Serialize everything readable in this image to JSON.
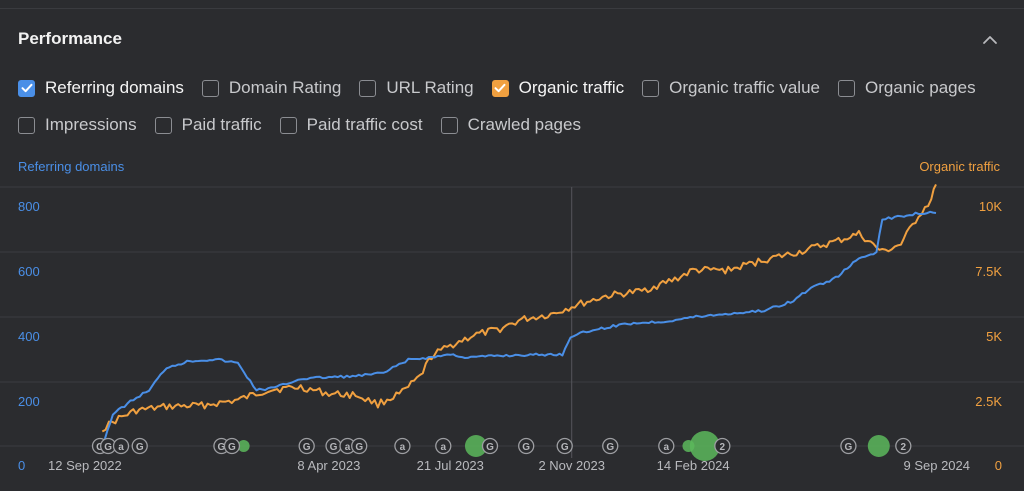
{
  "panel": {
    "title": "Performance"
  },
  "checkboxes": {
    "row1": [
      {
        "label": "Referring domains",
        "checked": true,
        "color": "#4a8fe7"
      },
      {
        "label": "Domain Rating",
        "checked": false
      },
      {
        "label": "URL Rating",
        "checked": false
      },
      {
        "label": "Organic traffic",
        "checked": true,
        "color": "#f0a040"
      },
      {
        "label": "Organic traffic value",
        "checked": false
      },
      {
        "label": "Organic pages",
        "checked": false
      }
    ],
    "row2": [
      {
        "label": "Impressions",
        "checked": false
      },
      {
        "label": "Paid traffic",
        "checked": false
      },
      {
        "label": "Paid traffic cost",
        "checked": false
      },
      {
        "label": "Crawled pages",
        "checked": false
      }
    ]
  },
  "chart_data": {
    "type": "line",
    "left_axis_title": "Referring domains",
    "right_axis_title": "Organic traffic",
    "left_ticks": [
      "0",
      "200",
      "400",
      "600",
      "800"
    ],
    "right_ticks": [
      "0",
      "2.5K",
      "5K",
      "7.5K",
      "10K"
    ],
    "ylim_left": [
      0,
      800
    ],
    "ylim_right": [
      0,
      10000
    ],
    "x_tick_labels": [
      "12 Sep 2022",
      "8 Apr 2023",
      "21 Jul 2023",
      "2 Nov 2023",
      "14 Feb 2024",
      "9 Sep 2024"
    ],
    "grid": true,
    "colors": {
      "referring_domains": "#4a8fe7",
      "organic_traffic": "#f0a040",
      "event_green": "#5cb85c"
    },
    "series": [
      {
        "name": "Referring domains",
        "axis": "left",
        "points": [
          [
            "2022-09-26",
            5
          ],
          [
            "2022-10-05",
            100
          ],
          [
            "2022-10-20",
            140
          ],
          [
            "2022-11-05",
            175
          ],
          [
            "2022-11-20",
            245
          ],
          [
            "2022-12-10",
            265
          ],
          [
            "2023-01-01",
            270
          ],
          [
            "2023-01-20",
            258
          ],
          [
            "2023-02-05",
            175
          ],
          [
            "2023-02-20",
            182
          ],
          [
            "2023-03-15",
            210
          ],
          [
            "2023-04-08",
            215
          ],
          [
            "2023-05-01",
            218
          ],
          [
            "2023-05-25",
            228
          ],
          [
            "2023-06-15",
            268
          ],
          [
            "2023-07-05",
            276
          ],
          [
            "2023-07-21",
            285
          ],
          [
            "2023-08-05",
            275
          ],
          [
            "2023-08-25",
            280
          ],
          [
            "2023-09-20",
            283
          ],
          [
            "2023-10-25",
            285
          ],
          [
            "2023-11-01",
            340
          ],
          [
            "2023-11-20",
            360
          ],
          [
            "2023-12-20",
            380
          ],
          [
            "2024-01-20",
            386
          ],
          [
            "2024-02-14",
            400
          ],
          [
            "2024-03-15",
            410
          ],
          [
            "2024-04-15",
            420
          ],
          [
            "2024-05-10",
            450
          ],
          [
            "2024-05-25",
            490
          ],
          [
            "2024-06-15",
            520
          ],
          [
            "2024-07-05",
            580
          ],
          [
            "2024-07-20",
            600
          ],
          [
            "2024-07-25",
            700
          ],
          [
            "2024-08-10",
            710
          ],
          [
            "2024-08-25",
            720
          ],
          [
            "2024-09-09",
            720
          ]
        ]
      },
      {
        "name": "Organic traffic",
        "axis": "right",
        "points": [
          [
            "2022-09-26",
            700
          ],
          [
            "2022-10-10",
            1100
          ],
          [
            "2022-10-25",
            1400
          ],
          [
            "2022-11-20",
            1550
          ],
          [
            "2022-12-20",
            1600
          ],
          [
            "2023-01-20",
            1800
          ],
          [
            "2023-02-15",
            2200
          ],
          [
            "2023-03-15",
            2300
          ],
          [
            "2023-04-08",
            2050
          ],
          [
            "2023-05-01",
            2000
          ],
          [
            "2023-05-20",
            1650
          ],
          [
            "2023-06-10",
            2100
          ],
          [
            "2023-06-25",
            2700
          ],
          [
            "2023-07-05",
            3500
          ],
          [
            "2023-07-21",
            3900
          ],
          [
            "2023-08-10",
            4300
          ],
          [
            "2023-08-30",
            4500
          ],
          [
            "2023-09-20",
            4900
          ],
          [
            "2023-10-15",
            5100
          ],
          [
            "2023-11-02",
            5400
          ],
          [
            "2023-12-01",
            5800
          ],
          [
            "2024-01-01",
            6000
          ],
          [
            "2024-02-01",
            6500
          ],
          [
            "2024-02-14",
            6800
          ],
          [
            "2024-03-15",
            6800
          ],
          [
            "2024-04-15",
            7200
          ],
          [
            "2024-05-15",
            7500
          ],
          [
            "2024-06-15",
            7900
          ],
          [
            "2024-07-05",
            8200
          ],
          [
            "2024-07-25",
            7500
          ],
          [
            "2024-08-10",
            7800
          ],
          [
            "2024-08-25",
            8900
          ],
          [
            "2024-09-05",
            9500
          ],
          [
            "2024-09-09",
            10100
          ]
        ]
      }
    ],
    "event_markers": [
      {
        "date": "2022-09-24",
        "glyph": "G"
      },
      {
        "date": "2022-10-01",
        "glyph": "G"
      },
      {
        "date": "2022-10-12",
        "glyph": "a"
      },
      {
        "date": "2022-10-28",
        "glyph": "G"
      },
      {
        "date": "2023-01-06",
        "glyph": "G"
      },
      {
        "date": "2023-01-15",
        "glyph": "G"
      },
      {
        "date": "2023-03-20",
        "glyph": "G"
      },
      {
        "date": "2023-04-12",
        "glyph": "G"
      },
      {
        "date": "2023-04-24",
        "glyph": "a"
      },
      {
        "date": "2023-05-04",
        "glyph": "G"
      },
      {
        "date": "2023-06-10",
        "glyph": "a"
      },
      {
        "date": "2023-07-15",
        "glyph": "a"
      },
      {
        "date": "2023-08-24",
        "glyph": "G"
      },
      {
        "date": "2023-09-24",
        "glyph": "G"
      },
      {
        "date": "2023-10-27",
        "glyph": "G"
      },
      {
        "date": "2023-12-05",
        "glyph": "G"
      },
      {
        "date": "2024-01-22",
        "glyph": "a"
      },
      {
        "date": "2024-03-10",
        "glyph": "2"
      },
      {
        "date": "2024-06-26",
        "glyph": "G"
      },
      {
        "date": "2024-08-12",
        "glyph": "2"
      }
    ],
    "green_events": [
      {
        "date": "2023-01-25",
        "size": "small"
      },
      {
        "date": "2023-08-12",
        "size": "medium"
      },
      {
        "date": "2024-02-10",
        "size": "small"
      },
      {
        "date": "2024-02-24",
        "size": "large"
      },
      {
        "date": "2024-07-22",
        "size": "medium"
      }
    ],
    "crosshair_date": "2023-11-02"
  }
}
